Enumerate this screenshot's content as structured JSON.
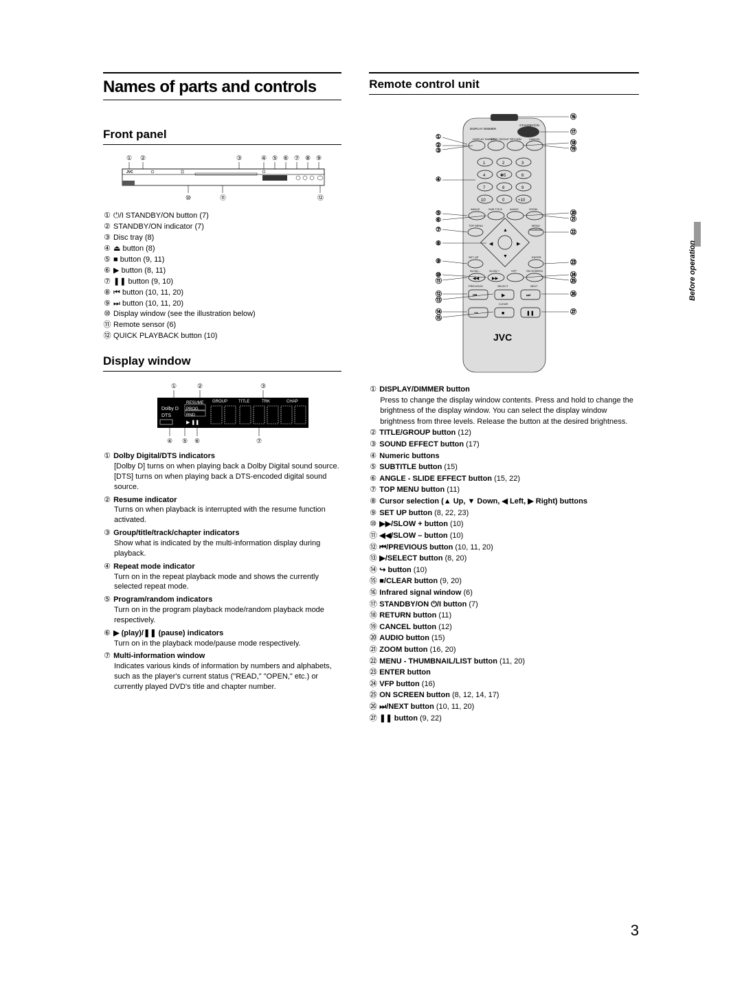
{
  "page_number": "3",
  "side_label": "Before operation",
  "main_title": "Names of parts and controls",
  "left": {
    "front_panel": {
      "heading": "Front panel",
      "items": [
        {
          "n": "①",
          "text": "⏻/I STANDBY/ON button (7)"
        },
        {
          "n": "②",
          "text": "STANDBY/ON indicator (7)"
        },
        {
          "n": "③",
          "text": "Disc tray (8)"
        },
        {
          "n": "④",
          "text": "⏏ button (8)"
        },
        {
          "n": "⑤",
          "text": "■ button (9, 11)"
        },
        {
          "n": "⑥",
          "text": "▶ button (8, 11)"
        },
        {
          "n": "⑦",
          "text": "❚❚ button (9, 10)"
        },
        {
          "n": "⑧",
          "text": "⏮ button (10, 11, 20)"
        },
        {
          "n": "⑨",
          "text": "⏭ button (10, 11, 20)"
        },
        {
          "n": "⑩",
          "text": "Display window (see the illustration below)"
        },
        {
          "n": "⑪",
          "text": "Remote sensor (6)"
        },
        {
          "n": "⑫",
          "text": "QUICK PLAYBACK button (10)"
        }
      ]
    },
    "display_window": {
      "heading": "Display window",
      "items": [
        {
          "n": "①",
          "title": "Dolby Digital/DTS indicators",
          "body": "[Dolby D] turns on when playing back a Dolby Digital sound source. [DTS] turns on when playing back a DTS-encoded digital sound source."
        },
        {
          "n": "②",
          "title": "Resume indicator",
          "body": "Turns on when playback is interrupted with the resume function activated."
        },
        {
          "n": "③",
          "title": "Group/title/track/chapter indicators",
          "body": "Show what is indicated by the multi-information display during playback."
        },
        {
          "n": "④",
          "title": "Repeat mode indicator",
          "body": "Turn on in the repeat playback mode and shows the currently selected repeat mode."
        },
        {
          "n": "⑤",
          "title": "Program/random indicators",
          "body": "Turn on in the program playback mode/random playback mode respectively."
        },
        {
          "n": "⑥",
          "title": "▶ (play)/❚❚ (pause) indicators",
          "body": "Turn on in the playback mode/pause mode respectively."
        },
        {
          "n": "⑦",
          "title": "Multi-information window",
          "body": "Indicates various kinds of information by numbers and alphabets, such as the player's current status (\"READ,\" \"OPEN,\" etc.) or currently played DVD's title and chapter number."
        }
      ],
      "labels": {
        "group": "GROUP",
        "title": "TITLE",
        "trk": "TRK",
        "chap": "CHAP",
        "resume": "RESUME",
        "prog": "PROG",
        "rnd": "RND",
        "dolby": "Dolby D",
        "dts": "DTS"
      }
    }
  },
  "right": {
    "heading": "Remote control unit",
    "brand": "JVC",
    "remote_btn_labels": {
      "display": "DISPLAY DIMMER",
      "title": "TITLE GROUP",
      "return": "RETURN",
      "cancel": "CANCEL",
      "standby": "STANDBY/ON",
      "angle": "ANGLE",
      "subtitle": "SUB TITLE",
      "audio": "AUDIO",
      "zoom": "ZOOM",
      "topmenu": "TOP MENU",
      "menu": "MENU",
      "thumb": "THUMBNAIL",
      "setup": "SET UP",
      "enter": "ENTER",
      "onscreen": "ON SCREEN",
      "vfp": "VFP",
      "slowp": "SLOW +",
      "slowm": "SLOW –",
      "prev": "PREVIOUS",
      "select": "SELECT",
      "next": "NEXT",
      "clear": "CLEAR"
    },
    "items": [
      {
        "n": "①",
        "bold": "DISPLAY/DIMMER button",
        "body": "Press to change the display window contents. Press and hold to change the brightness of the display window. You can select the display window brightness from three levels. Release the button at the desired brightness."
      },
      {
        "n": "②",
        "bold": "TITLE/GROUP button",
        "ref": "(12)"
      },
      {
        "n": "③",
        "bold": "SOUND EFFECT button",
        "ref": "(17)"
      },
      {
        "n": "④",
        "bold": "Numeric buttons"
      },
      {
        "n": "⑤",
        "bold": "SUBTITLE button",
        "ref": "(15)"
      },
      {
        "n": "⑥",
        "bold": "ANGLE - SLIDE EFFECT button",
        "ref": "(15, 22)"
      },
      {
        "n": "⑦",
        "bold": "TOP MENU button",
        "ref": "(11)"
      },
      {
        "n": "⑧",
        "bold": "Cursor selection (▲ Up, ▼ Down, ◀ Left, ▶ Right) buttons"
      },
      {
        "n": "⑨",
        "bold": "SET UP button",
        "ref": "(8, 22, 23)"
      },
      {
        "n": "⑩",
        "bold": "▶▶/SLOW + button",
        "ref": "(10)"
      },
      {
        "n": "⑪",
        "bold": "◀◀/SLOW – button",
        "ref": "(10)"
      },
      {
        "n": "⑫",
        "bold": "⏮/PREVIOUS button",
        "ref": "(10, 11, 20)"
      },
      {
        "n": "⑬",
        "bold": "▶/SELECT button",
        "ref": "(8, 20)"
      },
      {
        "n": "⑭",
        "bold": "↪ button",
        "ref": "(10)"
      },
      {
        "n": "⑮",
        "bold": "■/CLEAR button",
        "ref": "(9, 20)"
      },
      {
        "n": "⑯",
        "bold": "Infrared signal window",
        "ref": "(6)"
      },
      {
        "n": "⑰",
        "bold": "STANDBY/ON ⏻/I button",
        "ref": "(7)"
      },
      {
        "n": "⑱",
        "bold": "RETURN button",
        "ref": "(11)"
      },
      {
        "n": "⑲",
        "bold": "CANCEL button",
        "ref": "(12)"
      },
      {
        "n": "⑳",
        "bold": "AUDIO button",
        "ref": "(15)"
      },
      {
        "n": "㉑",
        "bold": "ZOOM button",
        "ref": "(16, 20)"
      },
      {
        "n": "㉒",
        "bold": "MENU - THUMBNAIL/LIST button",
        "ref": "(11, 20)"
      },
      {
        "n": "㉓",
        "bold": "ENTER button"
      },
      {
        "n": "㉔",
        "bold": "VFP button",
        "ref": "(16)"
      },
      {
        "n": "㉕",
        "bold": "ON SCREEN button",
        "ref": "(8, 12, 14, 17)"
      },
      {
        "n": "㉖",
        "bold": "⏭/NEXT button",
        "ref": "(10, 11, 20)"
      },
      {
        "n": "㉗",
        "bold": "❚❚ button",
        "ref": "(9, 22)"
      }
    ]
  },
  "style": {
    "bg": "#ffffff",
    "fg": "#000000",
    "rule": "#000000",
    "diagram_fill": "#444444",
    "diagram_light": "#bbbbbb"
  }
}
